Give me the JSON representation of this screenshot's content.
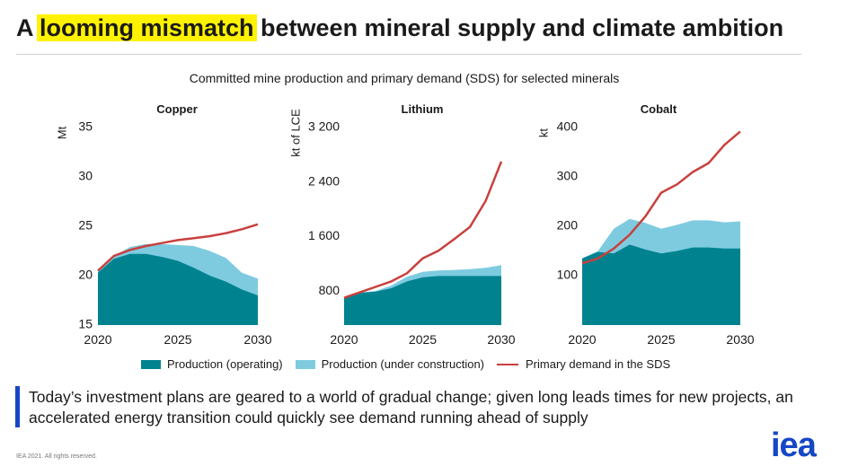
{
  "header": {
    "title_pre": "A ",
    "title_highlight": "looming mismatch",
    "title_post": " between mineral supply and climate ambition"
  },
  "subtitle": "Committed mine production and primary demand (SDS) for selected minerals",
  "legend": {
    "operating": "Production (operating)",
    "construction": "Production (under construction)",
    "demand": "Primary demand in the SDS"
  },
  "callout": "Today’s investment plans are geared to a world of gradual change; given long leads times for new projects, an accelerated energy transition could quickly see demand running ahead of supply",
  "footer": "IEA 2021. All rights reserved.",
  "logo": {
    "text": "iea",
    "color": "#1547c6"
  },
  "colors": {
    "operating": "#00838f",
    "construction": "#7ecbe0",
    "demand": "#c8413e",
    "accent": "#1547c6",
    "highlight": "#fff200"
  },
  "chart_data": [
    {
      "type": "area",
      "title": "Copper",
      "ylabel": "Mt",
      "ylim": [
        15,
        35
      ],
      "yticks": [
        15,
        20,
        25,
        30,
        35
      ],
      "ytick_labels": [
        "15",
        "20",
        "25",
        "30",
        "35"
      ],
      "x": [
        2020,
        2021,
        2022,
        2023,
        2024,
        2025,
        2026,
        2027,
        2028,
        2029,
        2030
      ],
      "xticks": [
        2020,
        2025,
        2030
      ],
      "xtick_labels": [
        "2020",
        "2025",
        "2030"
      ],
      "series": [
        {
          "name": "Production (operating)",
          "values": [
            20.3,
            21.7,
            22.2,
            22.2,
            21.9,
            21.5,
            20.8,
            20.0,
            19.4,
            18.6,
            18.0
          ]
        },
        {
          "name": "Production (under construction)",
          "values": [
            20.5,
            22.0,
            22.9,
            23.2,
            23.2,
            23.1,
            23.0,
            22.5,
            21.8,
            20.3,
            19.7
          ]
        },
        {
          "name": "Primary demand in the SDS",
          "values": [
            20.5,
            22.0,
            22.6,
            23.0,
            23.3,
            23.6,
            23.8,
            24.0,
            24.3,
            24.7,
            25.2
          ]
        }
      ]
    },
    {
      "type": "area",
      "title": "Lithium",
      "ylabel": "kt of LCE",
      "ylim": [
        300,
        3200
      ],
      "yticks": [
        800,
        1600,
        2400,
        3200
      ],
      "ytick_labels": [
        "800",
        "1 600",
        "2 400",
        "3 200"
      ],
      "x": [
        2020,
        2021,
        2022,
        2023,
        2024,
        2025,
        2026,
        2027,
        2028,
        2029,
        2030
      ],
      "xticks": [
        2020,
        2025,
        2030
      ],
      "xtick_labels": [
        "2020",
        "2025",
        "2030"
      ],
      "series": [
        {
          "name": "Production (operating)",
          "values": [
            700,
            770,
            790,
            840,
            940,
            1000,
            1020,
            1020,
            1020,
            1020,
            1020
          ]
        },
        {
          "name": "Production (under construction)",
          "values": [
            700,
            780,
            800,
            880,
            1010,
            1080,
            1100,
            1110,
            1120,
            1140,
            1180
          ]
        },
        {
          "name": "Primary demand in the SDS",
          "values": [
            700,
            780,
            860,
            940,
            1060,
            1280,
            1390,
            1560,
            1740,
            2120,
            2700
          ]
        }
      ]
    },
    {
      "type": "area",
      "title": "Cobalt",
      "ylabel": "kt",
      "ylim": [
        0,
        400
      ],
      "yticks": [
        100,
        200,
        300,
        400
      ],
      "ytick_labels": [
        "100",
        "200",
        "300",
        "400"
      ],
      "x": [
        2020,
        2021,
        2022,
        2023,
        2024,
        2025,
        2026,
        2027,
        2028,
        2029,
        2030
      ],
      "xticks": [
        2020,
        2025,
        2030
      ],
      "xtick_labels": [
        "2020",
        "2025",
        "2030"
      ],
      "series": [
        {
          "name": "Production (operating)",
          "values": [
            135,
            148,
            145,
            163,
            153,
            145,
            150,
            157,
            157,
            155,
            155
          ]
        },
        {
          "name": "Production (under construction)",
          "values": [
            135,
            150,
            195,
            215,
            207,
            195,
            203,
            212,
            212,
            208,
            210
          ]
        },
        {
          "name": "Primary demand in the SDS",
          "values": [
            125,
            135,
            155,
            183,
            220,
            268,
            285,
            310,
            328,
            365,
            392
          ]
        }
      ]
    }
  ]
}
